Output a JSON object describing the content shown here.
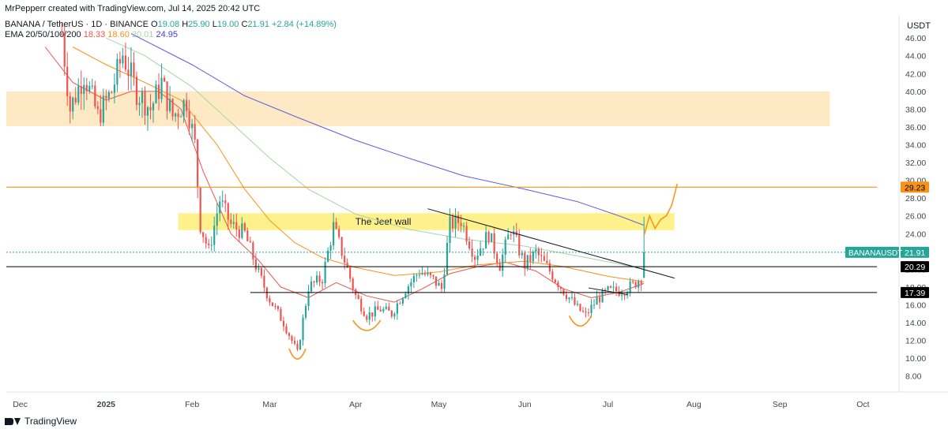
{
  "header": {
    "credit": "MrPepperr created with TradingView.com, Jul 14, 2025 20:42 UTC",
    "symbol": "BANANA / TetherUS · 1D · BINANCE",
    "ohlc": [
      {
        "label": "O",
        "value": "19.08"
      },
      {
        "label": "H",
        "value": "25.90"
      },
      {
        "label": "L",
        "value": "19.00"
      },
      {
        "label": "C",
        "value": "21.91"
      }
    ],
    "change": "+2.84 (+14.89%)",
    "ema_label": "EMA 20/50/100/200",
    "ema_values": [
      {
        "value": "18.33",
        "color": "#ef5350"
      },
      {
        "value": "18.60",
        "color": "#f7931a"
      },
      {
        "value": "20.01",
        "color": "#a5d6a7"
      },
      {
        "value": "24.95",
        "color": "#3f3fd6"
      }
    ]
  },
  "currency": "USDT",
  "footer": {
    "brand": "TradingView"
  },
  "colors": {
    "up": "#26a69a",
    "down": "#ef5350",
    "ema20": "#ef5350",
    "ema50": "#f7931a",
    "ema100": "#a5d6a7",
    "ema200": "#5c5ce0",
    "resistance_zone": "#fde9c4",
    "jeet_zone": "#fef08a",
    "target_line": "#f7931a",
    "text": "#131722",
    "axis_text": "#434651"
  },
  "chart_data": {
    "type": "candlestick",
    "y_axis_ticks": [
      "46.00",
      "44.00",
      "42.00",
      "40.00",
      "38.00",
      "36.00",
      "34.00",
      "32.00",
      "30.00",
      "28.00",
      "26.00",
      "24.00",
      "22.00",
      "20.00",
      "18.00",
      "16.00",
      "14.00",
      "12.00",
      "10.00",
      "8.00"
    ],
    "ylim": [
      6.2,
      48.5
    ],
    "x_range": [
      "2024-11-26",
      "2025-10-06"
    ],
    "x_axis_ticks": [
      {
        "label": "Dec",
        "date": "2024-12-01",
        "bold": false
      },
      {
        "label": "2025",
        "date": "2025-01-01",
        "bold": true
      },
      {
        "label": "Feb",
        "date": "2025-02-01",
        "bold": false
      },
      {
        "label": "Mar",
        "date": "2025-03-01",
        "bold": false
      },
      {
        "label": "Apr",
        "date": "2025-04-01",
        "bold": false
      },
      {
        "label": "May",
        "date": "2025-05-01",
        "bold": false
      },
      {
        "label": "Jun",
        "date": "2025-06-01",
        "bold": false
      },
      {
        "label": "Jul",
        "date": "2025-07-01",
        "bold": false
      },
      {
        "label": "Aug",
        "date": "2025-08-01",
        "bold": false
      },
      {
        "label": "Sep",
        "date": "2025-09-01",
        "bold": false
      },
      {
        "label": "Oct",
        "date": "2025-10-01",
        "bold": false
      }
    ],
    "price_labels": [
      {
        "value": 29.23,
        "text": "29.23",
        "bg": "#f7931a",
        "color": "#000000",
        "name": ""
      },
      {
        "value": 21.91,
        "text": "21.91",
        "bg": "#26a69a",
        "color": "#ffffff",
        "name": "BANANAUSDT"
      },
      {
        "value": 20.29,
        "text": "20.29",
        "bg": "#000000",
        "color": "#ffffff",
        "name": ""
      },
      {
        "value": 17.39,
        "text": "17.39",
        "bg": "#000000",
        "color": "#ffffff",
        "name": ""
      }
    ],
    "zones": [
      {
        "name": "resistance-zone",
        "from": "2024-11-26",
        "to": "2025-09-19",
        "low": 36.1,
        "high": 40.0,
        "color": "#fde9c4"
      },
      {
        "name": "jeet-wall-zone",
        "from": "2025-01-27",
        "to": "2025-07-25",
        "low": 24.4,
        "high": 26.3,
        "color": "#fef08a",
        "label": "The Jeet wall"
      }
    ],
    "hlines": [
      {
        "value": 29.23,
        "from": "2024-11-26",
        "to": "2025-10-06",
        "color": "#f7931a",
        "width": 1.2
      },
      {
        "value": 20.29,
        "from": "2024-11-26",
        "to": "2025-10-06",
        "color": "#000000",
        "width": 1
      },
      {
        "value": 17.39,
        "from": "2025-02-22",
        "to": "2025-10-06",
        "color": "#000000",
        "width": 1
      },
      {
        "value": 21.91,
        "from": "2024-11-26",
        "to": "2025-10-06",
        "color": "#26a69a",
        "width": 1,
        "dash": "2,2"
      }
    ],
    "trendlines": [
      {
        "from": [
          "2025-04-27",
          26.8
        ],
        "to": [
          "2025-07-25",
          19.0
        ],
        "color": "#131722"
      },
      {
        "from": [
          "2025-06-24",
          17.9
        ],
        "to": [
          "2025-07-08",
          17.15
        ],
        "color": "#131722"
      }
    ],
    "projection": [
      [
        "2025-07-14",
        23.8
      ],
      [
        "2025-07-16",
        26.0
      ],
      [
        "2025-07-18",
        24.6
      ],
      [
        "2025-07-20",
        25.6
      ],
      [
        "2025-07-22",
        26.0
      ],
      [
        "2025-07-24",
        27.2
      ],
      [
        "2025-07-26",
        29.6
      ]
    ],
    "bottoms": [
      {
        "center": "2025-03-11",
        "low": 10.0,
        "half_width_days": 3
      },
      {
        "center": "2025-04-05",
        "low": 13.2,
        "half_width_days": 5
      },
      {
        "center": "2025-06-21",
        "low": 13.7,
        "half_width_days": 4
      }
    ],
    "series": [
      {
        "name": "EMA 20",
        "color": "#ef5350",
        "points": [
          [
            "2024-12-10",
            45
          ],
          [
            "2024-12-20",
            41
          ],
          [
            "2025-01-01",
            39
          ],
          [
            "2025-01-10",
            40
          ],
          [
            "2025-01-20",
            40
          ],
          [
            "2025-01-28",
            38
          ],
          [
            "2025-02-05",
            31
          ],
          [
            "2025-02-15",
            24
          ],
          [
            "2025-02-25",
            21
          ],
          [
            "2025-03-05",
            18
          ],
          [
            "2025-03-15",
            16.8
          ],
          [
            "2025-03-25",
            18.5
          ],
          [
            "2025-04-05",
            17
          ],
          [
            "2025-04-15",
            16.3
          ],
          [
            "2025-04-25",
            17.8
          ],
          [
            "2025-05-05",
            19.5
          ],
          [
            "2025-05-15",
            20.3
          ],
          [
            "2025-05-25",
            20.8
          ],
          [
            "2025-06-05",
            19.8
          ],
          [
            "2025-06-15",
            17.8
          ],
          [
            "2025-06-25",
            16.8
          ],
          [
            "2025-07-05",
            17.4
          ],
          [
            "2025-07-14",
            18.4
          ]
        ]
      },
      {
        "name": "EMA 50",
        "color": "#f7931a",
        "points": [
          [
            "2024-12-20",
            45
          ],
          [
            "2025-01-01",
            43
          ],
          [
            "2025-01-15",
            41
          ],
          [
            "2025-01-28",
            39
          ],
          [
            "2025-02-10",
            34
          ],
          [
            "2025-02-20",
            29
          ],
          [
            "2025-03-01",
            25.5
          ],
          [
            "2025-03-10",
            23
          ],
          [
            "2025-03-20",
            21.3
          ],
          [
            "2025-04-01",
            20.2
          ],
          [
            "2025-04-15",
            19.3
          ],
          [
            "2025-05-01",
            19.7
          ],
          [
            "2025-05-15",
            20.5
          ],
          [
            "2025-06-01",
            20.9
          ],
          [
            "2025-06-15",
            20.3
          ],
          [
            "2025-07-01",
            19.2
          ],
          [
            "2025-07-14",
            18.6
          ]
        ]
      },
      {
        "name": "EMA 100",
        "color": "#a5d6a7",
        "points": [
          [
            "2025-01-01",
            46
          ],
          [
            "2025-01-15",
            44
          ],
          [
            "2025-02-01",
            40.5
          ],
          [
            "2025-02-15",
            36.5
          ],
          [
            "2025-03-01",
            32.5
          ],
          [
            "2025-03-15",
            29
          ],
          [
            "2025-04-01",
            26.2
          ],
          [
            "2025-04-20",
            24.5
          ],
          [
            "2025-05-10",
            23.4
          ],
          [
            "2025-06-01",
            22.6
          ],
          [
            "2025-06-20",
            21.5
          ],
          [
            "2025-07-05",
            20.6
          ],
          [
            "2025-07-14",
            20.0
          ]
        ]
      },
      {
        "name": "EMA 200",
        "color": "#5c5ce0",
        "points": [
          [
            "2025-01-10",
            46.5
          ],
          [
            "2025-02-01",
            43
          ],
          [
            "2025-02-20",
            39.5
          ],
          [
            "2025-03-10",
            37.2
          ],
          [
            "2025-04-01",
            34.5
          ],
          [
            "2025-04-20",
            32.5
          ],
          [
            "2025-05-10",
            30.5
          ],
          [
            "2025-06-01",
            29
          ],
          [
            "2025-06-20",
            27.6
          ],
          [
            "2025-07-05",
            26
          ],
          [
            "2025-07-14",
            24.95
          ]
        ]
      }
    ],
    "candles_keypoints": [
      {
        "date": "2024-12-16",
        "price": 46.5
      },
      {
        "date": "2024-12-19",
        "price": 38
      },
      {
        "date": "2024-12-24",
        "price": 42
      },
      {
        "date": "2024-12-29",
        "price": 37.2
      },
      {
        "date": "2025-01-03",
        "price": 40
      },
      {
        "date": "2025-01-07",
        "price": 44.2
      },
      {
        "date": "2025-01-12",
        "price": 40
      },
      {
        "date": "2025-01-17",
        "price": 38
      },
      {
        "date": "2025-01-21",
        "price": 41
      },
      {
        "date": "2025-01-25",
        "price": 37.2
      },
      {
        "date": "2025-01-30",
        "price": 39
      },
      {
        "date": "2025-02-02",
        "price": 34
      },
      {
        "date": "2025-02-04",
        "price": 25
      },
      {
        "date": "2025-02-07",
        "price": 22
      },
      {
        "date": "2025-02-11",
        "price": 27.8
      },
      {
        "date": "2025-02-15",
        "price": 25
      },
      {
        "date": "2025-02-20",
        "price": 24
      },
      {
        "date": "2025-02-25",
        "price": 19.5
      },
      {
        "date": "2025-03-01",
        "price": 16.6
      },
      {
        "date": "2025-03-06",
        "price": 14
      },
      {
        "date": "2025-03-11",
        "price": 10.6
      },
      {
        "date": "2025-03-15",
        "price": 18
      },
      {
        "date": "2025-03-20",
        "price": 19
      },
      {
        "date": "2025-03-24",
        "price": 24.8
      },
      {
        "date": "2025-03-28",
        "price": 21
      },
      {
        "date": "2025-04-01",
        "price": 17
      },
      {
        "date": "2025-04-05",
        "price": 14.8
      },
      {
        "date": "2025-04-10",
        "price": 15.5
      },
      {
        "date": "2025-04-14",
        "price": 15
      },
      {
        "date": "2025-04-19",
        "price": 17.8
      },
      {
        "date": "2025-04-24",
        "price": 19.8
      },
      {
        "date": "2025-04-29",
        "price": 18.8
      },
      {
        "date": "2025-05-02",
        "price": 17.8
      },
      {
        "date": "2025-05-05",
        "price": 25
      },
      {
        "date": "2025-05-09",
        "price": 25.5
      },
      {
        "date": "2025-05-14",
        "price": 21.5
      },
      {
        "date": "2025-05-19",
        "price": 24
      },
      {
        "date": "2025-05-23",
        "price": 20.5
      },
      {
        "date": "2025-05-27",
        "price": 24.6
      },
      {
        "date": "2025-06-01",
        "price": 20.5
      },
      {
        "date": "2025-06-05",
        "price": 21.9
      },
      {
        "date": "2025-06-10",
        "price": 19.8
      },
      {
        "date": "2025-06-15",
        "price": 17.6
      },
      {
        "date": "2025-06-20",
        "price": 15.6
      },
      {
        "date": "2025-06-23",
        "price": 14.8
      },
      {
        "date": "2025-06-27",
        "price": 16.6
      },
      {
        "date": "2025-07-01",
        "price": 17.5
      },
      {
        "date": "2025-07-06",
        "price": 17.6
      },
      {
        "date": "2025-07-10",
        "price": 18.2
      },
      {
        "date": "2025-07-13",
        "price": 19.1
      },
      {
        "date": "2025-07-14",
        "price": 21.91
      }
    ],
    "last_candle": {
      "date": "2025-07-14",
      "open": 19.08,
      "high": 25.9,
      "low": 19.0,
      "close": 21.91
    }
  }
}
